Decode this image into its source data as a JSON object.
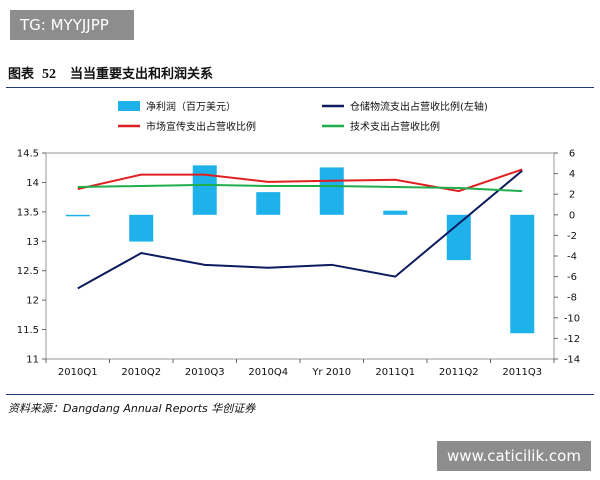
{
  "watermark_top": "TG: MYYJJPP",
  "watermark_bottom": "www.caticilik.com",
  "figure": {
    "label": "图表",
    "number": "52",
    "title": "当当重要支出和利润关系"
  },
  "source": "资料来源：Dangdang Annual Reports 华创证券",
  "colors": {
    "bar": "#1eb1ea",
    "warehouse": "#0b1b5e",
    "marketing": "#e02020",
    "tech": "#1fae4b",
    "rule": "#1f3b7a"
  },
  "chart_data": {
    "type": "bar+line",
    "categories": [
      "2010Q1",
      "2010Q2",
      "2010Q3",
      "2010Q4",
      "Yr 2010",
      "2011Q1",
      "2011Q2",
      "2011Q3"
    ],
    "left_axis": {
      "min": 11,
      "max": 14.5,
      "ticks": [
        "11",
        "11.5",
        "12",
        "12.5",
        "13",
        "13.5",
        "14",
        "14.5"
      ]
    },
    "right_axis": {
      "min": -14,
      "max": 6,
      "ticks": [
        "-14",
        "-12",
        "-10",
        "-8",
        "-6",
        "-4",
        "-2",
        "0",
        "2",
        "4",
        "6"
      ]
    },
    "series": [
      {
        "name": "净利润（百万美元）",
        "type": "bar",
        "axis": "right",
        "values": [
          -0.1,
          -2.6,
          4.8,
          2.2,
          4.6,
          0.4,
          -4.4,
          -11.5
        ]
      },
      {
        "name": "仓储物流支出占营收比例(左轴)",
        "type": "line",
        "axis": "left",
        "values": [
          12.2,
          12.8,
          12.6,
          12.55,
          12.6,
          12.4,
          13.3,
          14.2
        ]
      },
      {
        "name": "市场宣传支出占营收比例",
        "type": "line",
        "axis": "right",
        "values": [
          2.5,
          3.9,
          3.9,
          3.2,
          3.3,
          3.4,
          2.3,
          4.4
        ]
      },
      {
        "name": "技术支出占营收比例",
        "type": "line",
        "axis": "right",
        "values": [
          2.7,
          2.8,
          2.9,
          2.8,
          2.8,
          2.7,
          2.6,
          2.3
        ]
      }
    ],
    "legend_position": "top",
    "grid": false
  }
}
